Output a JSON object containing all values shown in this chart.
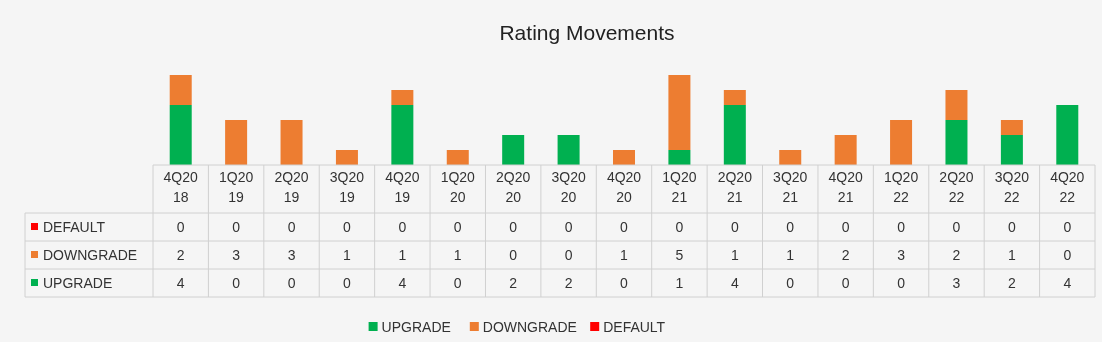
{
  "chart_data": {
    "type": "bar",
    "title": "Rating Movements",
    "stacked": true,
    "data_labels": true,
    "legend": "bottom",
    "categories": [
      "4Q2018",
      "1Q2019",
      "2Q2019",
      "3Q2019",
      "4Q2019",
      "1Q2020",
      "2Q2020",
      "3Q2020",
      "4Q2020",
      "1Q2021",
      "2Q2021",
      "3Q2021",
      "4Q2021",
      "1Q2022",
      "2Q2022",
      "3Q2022",
      "4Q2022"
    ],
    "series": [
      {
        "name": "UPGRADE",
        "color": "#00b050",
        "values": [
          4,
          0,
          0,
          0,
          4,
          0,
          2,
          2,
          0,
          1,
          4,
          0,
          0,
          0,
          3,
          2,
          4
        ]
      },
      {
        "name": "DOWNGRADE",
        "color": "#ed7d31",
        "values": [
          2,
          3,
          3,
          1,
          1,
          1,
          0,
          0,
          1,
          5,
          1,
          1,
          2,
          3,
          2,
          1,
          0
        ]
      },
      {
        "name": "DEFAULT",
        "color": "#ff0000",
        "values": [
          0,
          0,
          0,
          0,
          0,
          0,
          0,
          0,
          0,
          0,
          0,
          0,
          0,
          0,
          0,
          0,
          0
        ]
      }
    ]
  }
}
